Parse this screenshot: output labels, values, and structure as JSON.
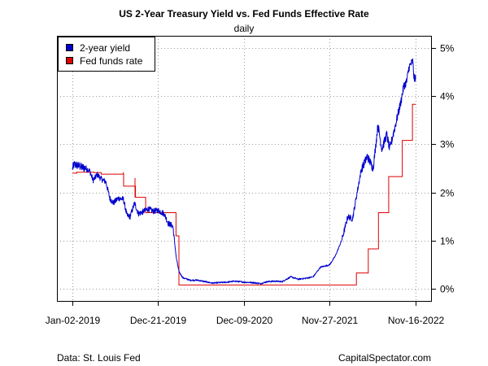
{
  "chart_data": {
    "type": "line",
    "title": "US 2-Year Treasury Yield vs. Fed Funds Effective Rate",
    "subtitle": "daily",
    "xlabel": "",
    "ylabel": "",
    "x_ticks": [
      "Jan-02-2019",
      "Dec-21-2019",
      "Dec-09-2020",
      "Nov-27-2021",
      "Nov-16-2022"
    ],
    "y_ticks": [
      "0%",
      "1%",
      "2%",
      "3%",
      "4%",
      "5%"
    ],
    "ylim": [
      -0.25,
      5.25
    ],
    "y_axis_side": "right",
    "grid": true,
    "legend_position": "top-left",
    "series": [
      {
        "name": "2-year yield",
        "color": "#0000cc",
        "points": [
          [
            "2019-01-02",
            2.5
          ],
          [
            "2019-01-10",
            2.58
          ],
          [
            "2019-01-25",
            2.56
          ],
          [
            "2019-02-10",
            2.52
          ],
          [
            "2019-02-25",
            2.51
          ],
          [
            "2019-03-15",
            2.44
          ],
          [
            "2019-03-28",
            2.25
          ],
          [
            "2019-04-15",
            2.37
          ],
          [
            "2019-05-01",
            2.28
          ],
          [
            "2019-05-20",
            2.22
          ],
          [
            "2019-06-05",
            1.88
          ],
          [
            "2019-06-20",
            1.78
          ],
          [
            "2019-07-10",
            1.88
          ],
          [
            "2019-07-31",
            1.86
          ],
          [
            "2019-08-15",
            1.52
          ],
          [
            "2019-08-28",
            1.5
          ],
          [
            "2019-09-15",
            1.78
          ],
          [
            "2019-10-01",
            1.56
          ],
          [
            "2019-10-20",
            1.6
          ],
          [
            "2019-11-10",
            1.66
          ],
          [
            "2019-12-01",
            1.61
          ],
          [
            "2019-12-21",
            1.63
          ],
          [
            "2020-01-15",
            1.56
          ],
          [
            "2020-02-01",
            1.36
          ],
          [
            "2020-02-20",
            1.3
          ],
          [
            "2020-03-05",
            0.65
          ],
          [
            "2020-03-16",
            0.36
          ],
          [
            "2020-04-01",
            0.23
          ],
          [
            "2020-05-01",
            0.18
          ],
          [
            "2020-06-01",
            0.18
          ],
          [
            "2020-07-01",
            0.15
          ],
          [
            "2020-08-01",
            0.12
          ],
          [
            "2020-09-01",
            0.13
          ],
          [
            "2020-10-01",
            0.14
          ],
          [
            "2020-11-01",
            0.16
          ],
          [
            "2020-12-09",
            0.14
          ],
          [
            "2021-01-15",
            0.13
          ],
          [
            "2021-02-15",
            0.11
          ],
          [
            "2021-03-15",
            0.15
          ],
          [
            "2021-04-15",
            0.16
          ],
          [
            "2021-05-15",
            0.15
          ],
          [
            "2021-06-20",
            0.25
          ],
          [
            "2021-07-20",
            0.2
          ],
          [
            "2021-08-20",
            0.22
          ],
          [
            "2021-09-20",
            0.25
          ],
          [
            "2021-10-20",
            0.45
          ],
          [
            "2021-11-27",
            0.5
          ],
          [
            "2021-12-20",
            0.68
          ],
          [
            "2022-01-15",
            1.0
          ],
          [
            "2022-02-10",
            1.5
          ],
          [
            "2022-03-01",
            1.45
          ],
          [
            "2022-03-20",
            2.0
          ],
          [
            "2022-04-05",
            2.45
          ],
          [
            "2022-05-01",
            2.75
          ],
          [
            "2022-05-25",
            2.5
          ],
          [
            "2022-06-14",
            3.4
          ],
          [
            "2022-06-30",
            2.9
          ],
          [
            "2022-07-20",
            3.2
          ],
          [
            "2022-08-01",
            2.9
          ],
          [
            "2022-08-25",
            3.4
          ],
          [
            "2022-09-15",
            3.85
          ],
          [
            "2022-09-28",
            4.2
          ],
          [
            "2022-10-10",
            4.3
          ],
          [
            "2022-10-20",
            4.6
          ],
          [
            "2022-11-04",
            4.72
          ],
          [
            "2022-11-10",
            4.35
          ],
          [
            "2022-11-16",
            4.4
          ]
        ]
      },
      {
        "name": "Fed funds rate",
        "color": "#dd0000",
        "steps": [
          [
            "2019-01-02",
            2.4
          ],
          [
            "2019-01-20",
            2.42
          ],
          [
            "2019-04-01",
            2.41
          ],
          [
            "2019-05-01",
            2.38
          ],
          [
            "2019-08-01",
            2.13
          ],
          [
            "2019-09-19",
            1.9
          ],
          [
            "2019-10-31",
            1.58
          ],
          [
            "2020-03-04",
            1.1
          ],
          [
            "2020-03-16",
            0.08
          ],
          [
            "2020-06-01",
            0.08
          ],
          [
            "2021-07-29",
            0.08
          ],
          [
            "2022-03-17",
            0.33
          ],
          [
            "2022-05-05",
            0.83
          ],
          [
            "2022-06-16",
            1.58
          ],
          [
            "2022-07-28",
            2.33
          ],
          [
            "2022-09-22",
            3.08
          ],
          [
            "2022-11-03",
            3.83
          ],
          [
            "2022-11-16",
            3.83
          ]
        ],
        "spikes": [
          [
            "2019-07-31",
            2.42,
            2.38
          ],
          [
            "2019-09-17",
            2.3,
            1.9
          ]
        ]
      }
    ]
  },
  "footer": {
    "source": "Data: St. Louis Fed",
    "credit": "CapitalSpectator.com"
  }
}
